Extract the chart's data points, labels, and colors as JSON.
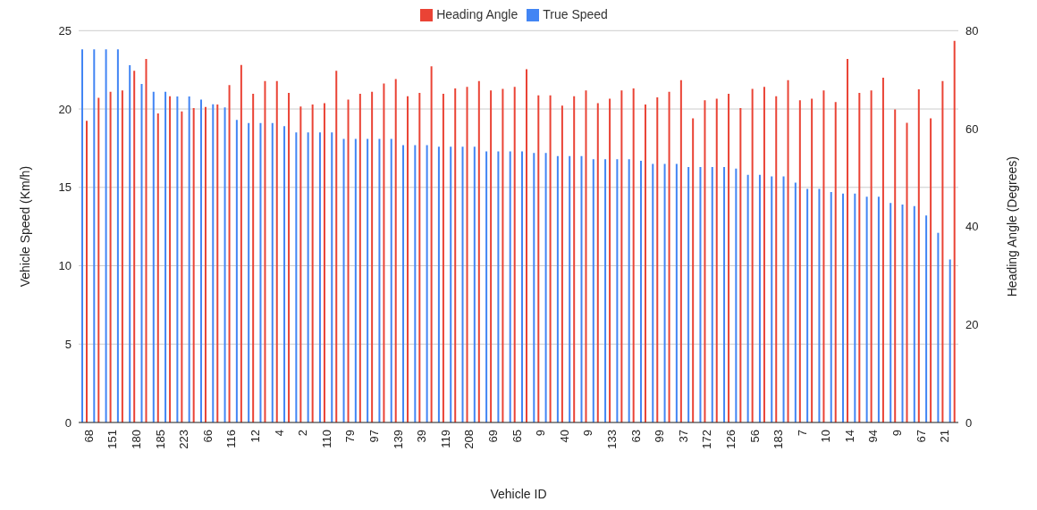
{
  "chart_data": {
    "type": "bar",
    "xlabel": "Vehicle ID",
    "ylabel": "Vehicle Speed (Km/h)",
    "y2label": "Heading Angle (Degrees)",
    "categories": [
      "68",
      null,
      "151",
      null,
      "180",
      null,
      "185",
      null,
      "223",
      null,
      "66",
      null,
      "116",
      null,
      "12",
      null,
      "4",
      null,
      "2",
      null,
      "110",
      null,
      "79",
      null,
      "97",
      null,
      "139",
      null,
      "39",
      null,
      "119",
      null,
      "208",
      null,
      "69",
      null,
      "65",
      null,
      "9",
      null,
      "40",
      null,
      "9",
      null,
      "133",
      null,
      "63",
      null,
      "99",
      null,
      "37",
      null,
      "172",
      null,
      "126",
      null,
      "56",
      null,
      "183",
      null,
      "7",
      null,
      "10",
      null,
      "14",
      null,
      "94",
      null,
      "9",
      null,
      "67",
      null,
      "21",
      null
    ],
    "series": [
      {
        "name": "True Speed",
        "color": "#4285f4",
        "values": [
          23.8,
          23.8,
          23.8,
          23.8,
          22.8,
          21.6,
          21.1,
          21.1,
          20.8,
          20.8,
          20.6,
          20.3,
          20.1,
          19.3,
          19.1,
          19.1,
          19.1,
          18.9,
          18.5,
          18.5,
          18.5,
          18.5,
          18.1,
          18.1,
          18.1,
          18.1,
          18.1,
          17.7,
          17.7,
          17.7,
          17.6,
          17.6,
          17.6,
          17.6,
          17.3,
          17.3,
          17.3,
          17.3,
          17.2,
          17.2,
          17.0,
          17.0,
          17.0,
          16.8,
          16.8,
          16.8,
          16.8,
          16.7,
          16.5,
          16.5,
          16.5,
          16.3,
          16.3,
          16.3,
          16.3,
          16.2,
          15.8,
          15.8,
          15.7,
          15.7,
          15.3,
          14.9,
          14.9,
          14.7,
          14.6,
          14.6,
          14.4,
          14.4,
          14.0,
          13.9,
          13.8,
          13.2,
          12.1,
          10.4
        ]
      },
      {
        "name": "Heading Angle",
        "color": "#ea4335",
        "axis": "y2",
        "values": [
          61.6,
          66.3,
          67.5,
          67.8,
          71.8,
          74.2,
          63.1,
          66.6,
          63.5,
          64.2,
          64.4,
          64.9,
          68.9,
          73.0,
          67.1,
          69.7,
          69.7,
          67.3,
          64.5,
          64.9,
          65.2,
          71.8,
          65.9,
          67.1,
          67.5,
          69.2,
          70.1,
          66.6,
          67.3,
          72.7,
          67.1,
          68.2,
          68.5,
          69.7,
          67.8,
          68.1,
          68.5,
          72.1,
          66.8,
          66.8,
          64.7,
          66.6,
          67.8,
          65.2,
          66.1,
          67.8,
          68.2,
          64.9,
          66.4,
          67.5,
          69.9,
          62.1,
          65.8,
          66.1,
          67.1,
          64.2,
          68.1,
          68.5,
          66.6,
          69.9,
          65.8,
          66.1,
          67.8,
          65.4,
          74.2,
          67.3,
          67.8,
          70.4,
          63.9,
          61.2,
          68.0,
          62.1,
          69.7,
          77.9
        ]
      }
    ],
    "ylim": [
      0,
      25
    ],
    "yticks": [
      0,
      5,
      10,
      15,
      20,
      25
    ],
    "y2lim": [
      0,
      80
    ],
    "y2ticks": [
      0,
      20,
      40,
      60,
      80
    ],
    "grid": "y",
    "legend": "top"
  }
}
